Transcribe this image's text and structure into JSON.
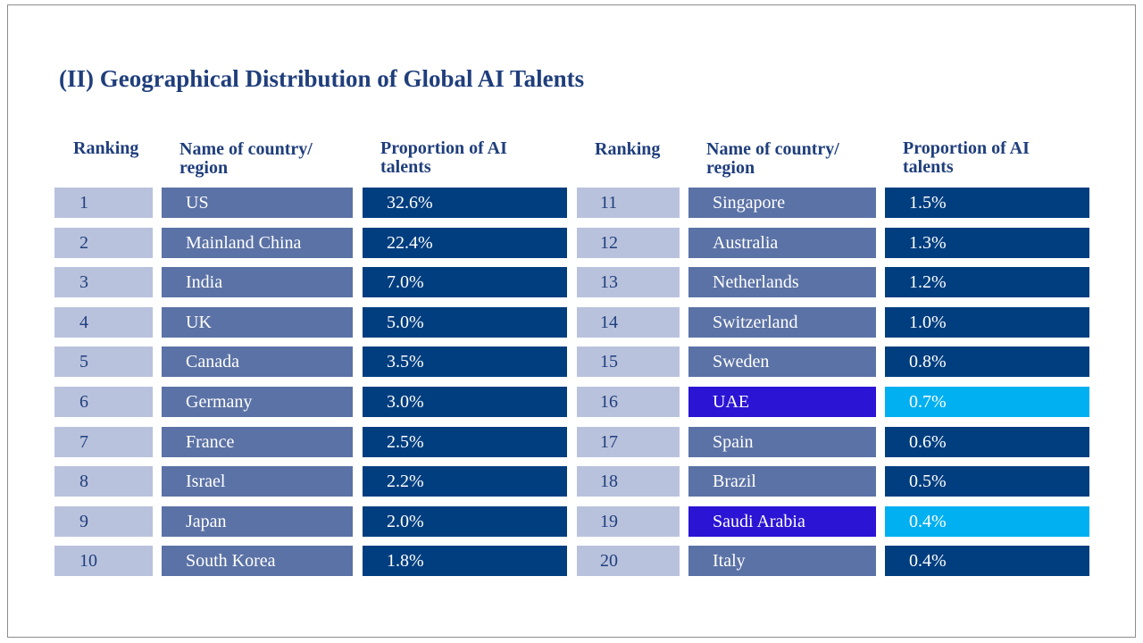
{
  "title": "(II) Geographical Distribution of Global AI Talents",
  "headers": {
    "ranking": "Ranking",
    "name_line1": "Name of country/",
    "name_line2": "region",
    "prop_line1": "Proportion of AI",
    "prop_line2": "talents"
  },
  "colors": {
    "rank_bg": "#b9c2dd",
    "name_bg": "#5b72a6",
    "prop_bg": "#003e80",
    "highlight_name_bg": "#2b14d4",
    "highlight_prop_bg": "#00b0f0",
    "header_text": "#1f3e7c"
  },
  "rows": [
    {
      "rank": "1",
      "name": "US",
      "proportion": "32.6%",
      "highlight": false
    },
    {
      "rank": "2",
      "name": "Mainland China",
      "proportion": "22.4%",
      "highlight": false
    },
    {
      "rank": "3",
      "name": "India",
      "proportion": "7.0%",
      "highlight": false
    },
    {
      "rank": "4",
      "name": "UK",
      "proportion": "5.0%",
      "highlight": false
    },
    {
      "rank": "5",
      "name": "Canada",
      "proportion": "3.5%",
      "highlight": false
    },
    {
      "rank": "6",
      "name": "Germany",
      "proportion": "3.0%",
      "highlight": false
    },
    {
      "rank": "7",
      "name": "France",
      "proportion": "2.5%",
      "highlight": false
    },
    {
      "rank": "8",
      "name": "Israel",
      "proportion": "2.2%",
      "highlight": false
    },
    {
      "rank": "9",
      "name": "Japan",
      "proportion": "2.0%",
      "highlight": false
    },
    {
      "rank": "10",
      "name": "South Korea",
      "proportion": "1.8%",
      "highlight": false
    },
    {
      "rank": "11",
      "name": "Singapore",
      "proportion": "1.5%",
      "highlight": false
    },
    {
      "rank": "12",
      "name": "Australia",
      "proportion": "1.3%",
      "highlight": false
    },
    {
      "rank": "13",
      "name": "Netherlands",
      "proportion": "1.2%",
      "highlight": false
    },
    {
      "rank": "14",
      "name": "Switzerland",
      "proportion": "1.0%",
      "highlight": false
    },
    {
      "rank": "15",
      "name": "Sweden",
      "proportion": "0.8%",
      "highlight": false
    },
    {
      "rank": "16",
      "name": "UAE",
      "proportion": "0.7%",
      "highlight": true
    },
    {
      "rank": "17",
      "name": "Spain",
      "proportion": "0.6%",
      "highlight": false
    },
    {
      "rank": "18",
      "name": "Brazil",
      "proportion": "0.5%",
      "highlight": false
    },
    {
      "rank": "19",
      "name": "Saudi Arabia",
      "proportion": "0.4%",
      "highlight": true
    },
    {
      "rank": "20",
      "name": "Italy",
      "proportion": "0.4%",
      "highlight": false
    }
  ]
}
